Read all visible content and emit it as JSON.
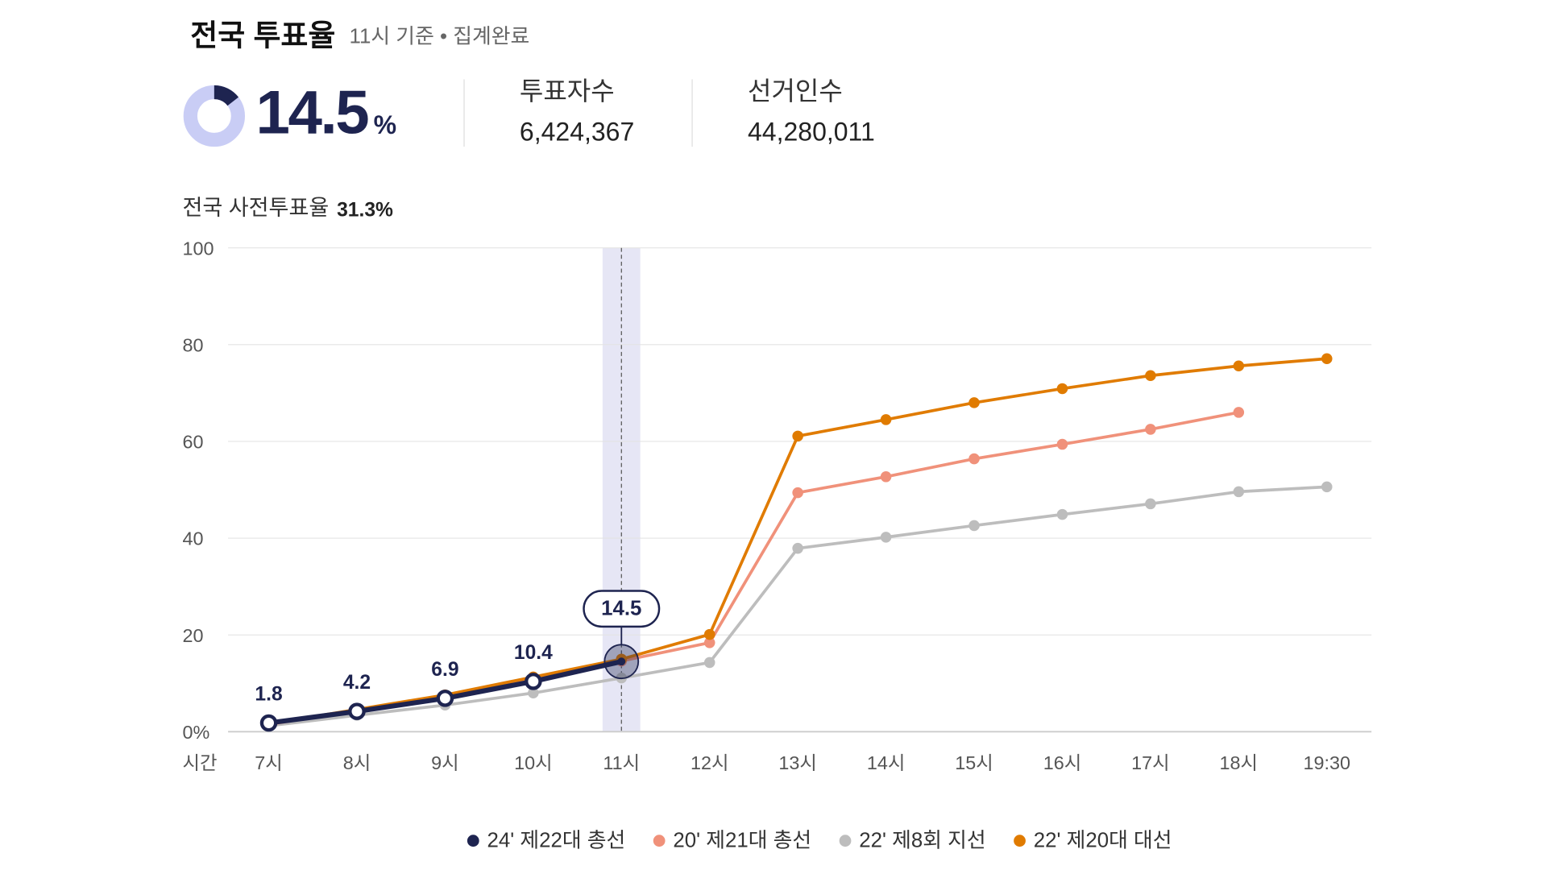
{
  "chart_data": {
    "type": "line",
    "title": "전국 투표율",
    "subtitle": "11시 기준 • 집계완료",
    "headline_value": 14.5,
    "headline_unit": "%",
    "stats": [
      {
        "label": "투표자수",
        "value": "6,424,367"
      },
      {
        "label": "선거인수",
        "value": "44,280,011"
      }
    ],
    "early_label": "전국 사전투표율",
    "early_value": "31.3%",
    "x_label": "시간",
    "categories": [
      "7시",
      "8시",
      "9시",
      "10시",
      "11시",
      "12시",
      "13시",
      "14시",
      "15시",
      "16시",
      "17시",
      "18시",
      "19:30"
    ],
    "series": [
      {
        "name": "24' 제22대 총선",
        "color": "#1e2450",
        "values": [
          1.8,
          4.2,
          6.9,
          10.4,
          14.5,
          null,
          null,
          null,
          null,
          null,
          null,
          null,
          null
        ]
      },
      {
        "name": "20' 제21대 총선",
        "color": "#f0917a",
        "values": [
          1.5,
          4.4,
          7.3,
          11.0,
          14.6,
          18.4,
          49.4,
          52.7,
          56.4,
          59.4,
          62.5,
          66.0,
          null
        ]
      },
      {
        "name": "22' 제8회 지선",
        "color": "#bdbdbd",
        "values": [
          1.2,
          3.4,
          5.5,
          8.0,
          11.1,
          14.3,
          37.9,
          40.2,
          42.6,
          44.9,
          47.1,
          49.6,
          50.6
        ]
      },
      {
        "name": "22' 제20대 대선",
        "color": "#e07b00",
        "values": [
          1.6,
          4.6,
          7.6,
          11.3,
          15.0,
          20.1,
          61.1,
          64.5,
          68.0,
          70.9,
          73.6,
          75.6,
          77.1
        ]
      }
    ],
    "ylim": [
      0,
      100
    ],
    "yticks": [
      {
        "value": 0,
        "label": "0%"
      },
      20,
      40,
      60,
      80,
      100
    ],
    "grid": true
  }
}
